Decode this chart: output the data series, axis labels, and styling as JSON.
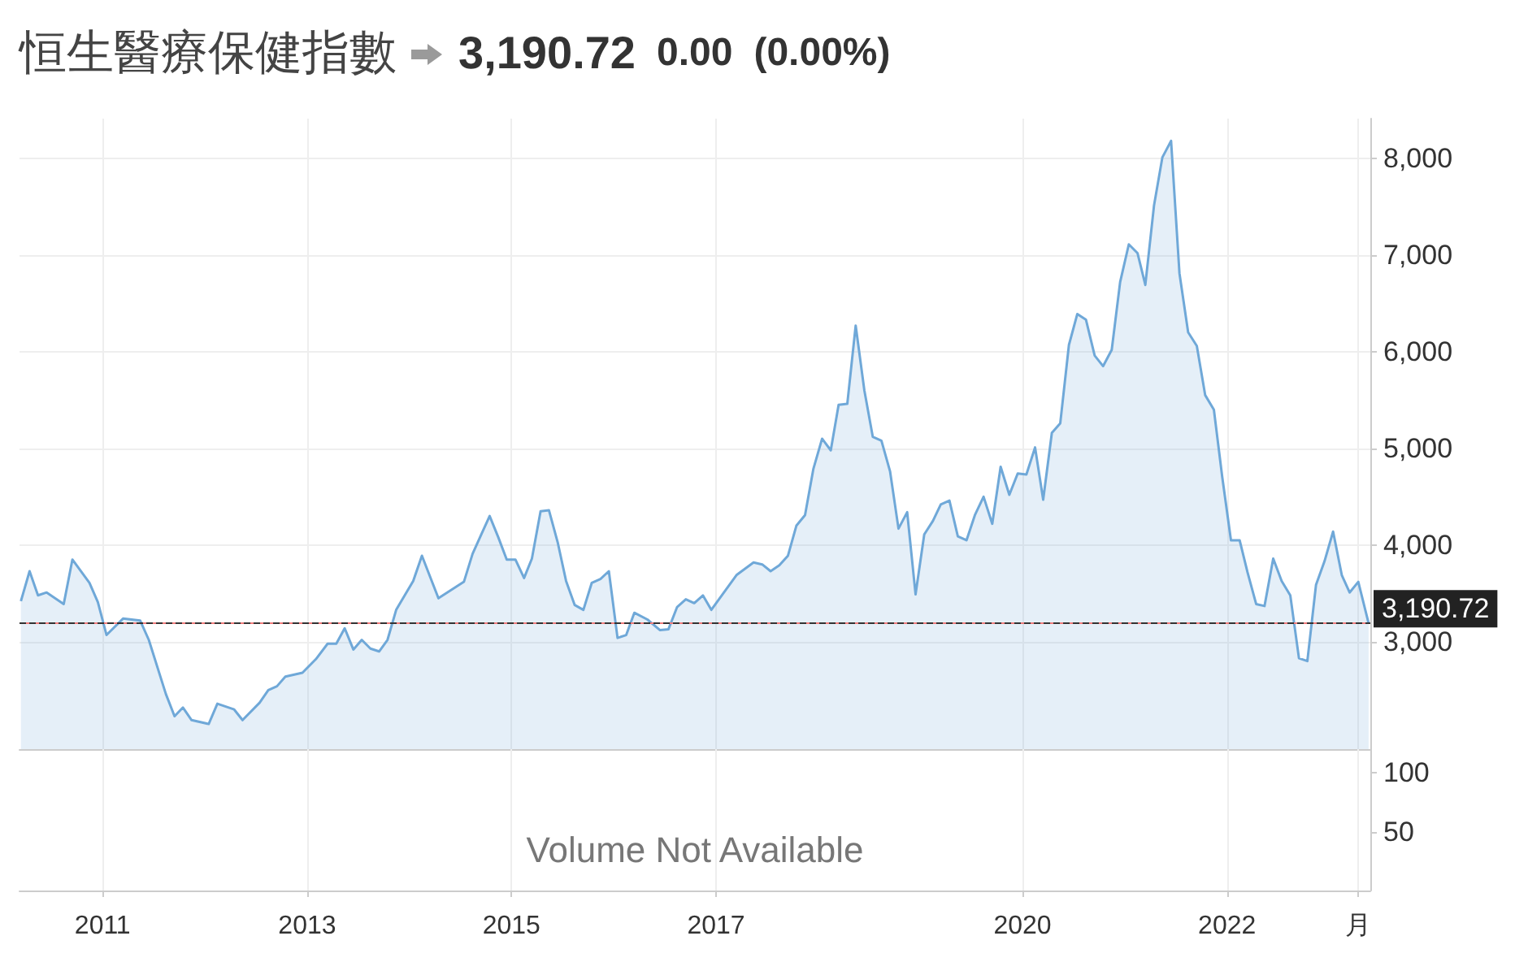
{
  "chart_data": [
    {
      "type": "area",
      "title": "恒生醫療保健指數",
      "annotations": [
        "3,190.72",
        "0.00",
        "(0.00%)"
      ],
      "x": [
        "2010-03-15",
        "2010-04-15",
        "2010-05-15",
        "2010-06-15",
        "2010-08-15",
        "2010-09-15",
        "2010-11-15",
        "2010-12-15",
        "2011-01-15",
        "2011-03-15",
        "2011-05-15",
        "2011-06-15",
        "2011-08-15",
        "2011-09-15",
        "2011-10-15",
        "2011-11-15",
        "2012-01-15",
        "2012-02-15",
        "2012-04-15",
        "2012-05-15",
        "2012-07-15",
        "2012-08-15",
        "2012-09-15",
        "2012-10-15",
        "2012-12-15",
        "2013-02-01",
        "2013-03-15",
        "2013-04-15",
        "2013-05-15",
        "2013-06-15",
        "2013-07-15",
        "2013-08-15",
        "2013-09-15",
        "2013-10-15",
        "2013-11-15",
        "2014-01-15",
        "2014-02-15",
        "2014-04-15",
        "2014-07-15",
        "2014-08-15",
        "2014-09-15",
        "2014-10-15",
        "2014-11-15",
        "2014-12-15",
        "2015-01-15",
        "2015-02-15",
        "2015-03-15",
        "2015-04-15",
        "2015-05-15",
        "2015-06-15",
        "2015-07-15",
        "2015-08-15",
        "2015-09-15",
        "2015-10-15",
        "2015-11-15",
        "2015-12-15",
        "2016-01-15",
        "2016-02-15",
        "2016-03-15",
        "2016-05-01",
        "2016-06-15",
        "2016-07-15",
        "2016-08-15",
        "2016-09-15",
        "2016-10-15",
        "2016-11-15",
        "2016-12-15",
        "2017-03-15",
        "2017-05-15",
        "2017-06-15",
        "2017-07-15",
        "2017-08-15",
        "2017-09-15",
        "2017-10-15",
        "2017-11-15",
        "2017-12-15",
        "2018-01-15",
        "2018-02-15",
        "2018-03-15",
        "2018-04-15",
        "2018-05-15",
        "2018-06-15",
        "2018-07-15",
        "2018-08-15",
        "2018-09-15",
        "2018-10-15",
        "2018-11-15",
        "2018-12-15",
        "2019-01-15",
        "2019-02-15",
        "2019-03-15",
        "2019-04-15",
        "2019-05-15",
        "2019-06-15",
        "2019-07-15",
        "2019-08-15",
        "2019-09-15",
        "2019-10-15",
        "2019-11-15",
        "2019-12-15",
        "2020-01-15",
        "2020-02-15",
        "2020-03-15",
        "2020-04-15",
        "2020-05-15",
        "2020-06-15",
        "2020-07-15",
        "2020-08-15",
        "2020-09-15",
        "2020-10-15",
        "2020-11-15",
        "2020-12-15",
        "2021-01-15",
        "2021-02-15",
        "2021-03-15",
        "2021-04-15",
        "2021-05-15",
        "2021-06-15",
        "2021-07-15",
        "2021-08-15",
        "2021-09-15",
        "2021-10-15",
        "2021-11-15",
        "2021-12-15",
        "2022-01-15",
        "2022-02-15",
        "2022-03-15",
        "2022-04-15",
        "2022-05-15",
        "2022-06-15",
        "2022-07-15",
        "2022-08-15",
        "2022-09-15",
        "2022-10-15",
        "2022-11-15",
        "2022-12-15",
        "2023-01-15",
        "2023-02-15",
        "2023-03-15",
        "2023-04-15",
        "2023-05-22"
      ],
      "values": [
        3420,
        3730,
        3480,
        3510,
        3390,
        3850,
        3610,
        3410,
        3070,
        3240,
        3220,
        3020,
        2460,
        2230,
        2320,
        2190,
        2150,
        2360,
        2300,
        2190,
        2370,
        2500,
        2540,
        2640,
        2680,
        2820,
        2980,
        2980,
        3140,
        2920,
        3020,
        2930,
        2900,
        3020,
        3330,
        3630,
        3890,
        3450,
        3620,
        3910,
        4110,
        4300,
        4080,
        3850,
        3850,
        3660,
        3860,
        4350,
        4360,
        4030,
        3630,
        3380,
        3330,
        3610,
        3650,
        3730,
        3040,
        3070,
        3300,
        3230,
        3120,
        3130,
        3360,
        3440,
        3400,
        3480,
        3330,
        3690,
        3820,
        3800,
        3730,
        3790,
        3890,
        4200,
        4310,
        4790,
        5100,
        4980,
        5450,
        5460,
        6270,
        5600,
        5120,
        5080,
        4760,
        4170,
        4340,
        3490,
        4110,
        4250,
        4420,
        4460,
        4090,
        4050,
        4310,
        4500,
        4220,
        4810,
        4520,
        4740,
        4730,
        5010,
        4470,
        5160,
        5260,
        6070,
        6390,
        6330,
        5960,
        5850,
        6020,
        6720,
        7110,
        7020,
        6690,
        7510,
        8010,
        8180,
        6810,
        6200,
        6060,
        5550,
        5400,
        4700,
        4050,
        4050,
        3720,
        3390,
        3370,
        3860,
        3630,
        3480,
        2830,
        2800,
        3590,
        3830,
        4140,
        3690,
        3510,
        3620,
        3190
      ],
      "color": "#6fa8d8",
      "xlim": [
        "2010-03-10",
        "2023-05-28"
      ],
      "xticks": [
        "2011",
        "2013",
        "2015",
        "2017",
        "2020",
        "2022",
        "2023-04-15"
      ],
      "ylim": [
        1890,
        8410
      ],
      "yticks": [
        {
          "value": 3000,
          "label": "3,000"
        },
        {
          "value": 4000,
          "label": "4,000"
        },
        {
          "value": 5000,
          "label": "5,000"
        },
        {
          "value": 6000,
          "label": "6,000"
        },
        {
          "value": 7000,
          "label": "7,000"
        },
        {
          "value": 8000,
          "label": "8,000"
        }
      ],
      "ref_lines": [
        {
          "axis": "y",
          "value": 3190.72,
          "color": "#f07c7c",
          "line_style": "solid"
        },
        {
          "axis": "y",
          "value": 3190.72,
          "label": "3,190.72",
          "color": "#333333",
          "line_style": "dashed"
        }
      ],
      "grid": true,
      "tick_labels": "y"
    },
    {
      "type": "bar",
      "annotations": [
        "Volume Not Available"
      ],
      "xlim": [
        "2010-03-10",
        "2023-05-28"
      ],
      "xticks": [
        "2011",
        "2013",
        "2015",
        "2017",
        "2020",
        "2022",
        {
          "value": "2023-04-15",
          "label": "月"
        }
      ],
      "ylim": [
        0,
        120
      ],
      "yticks": [
        50,
        100
      ],
      "grid": "x"
    }
  ]
}
